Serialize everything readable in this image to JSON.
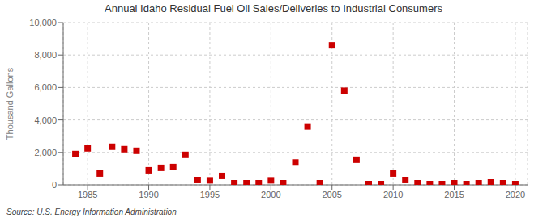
{
  "chart_data": {
    "type": "scatter",
    "title": "Annual Idaho Residual Fuel Oil Sales/Deliveries to Industrial Consumers",
    "y_label": "Thousand Gallons",
    "annotations": [
      "Source: U.S. Energy Information Administration"
    ],
    "x": [
      1984,
      1985,
      1986,
      1987,
      1988,
      1989,
      1990,
      1991,
      1992,
      1993,
      1994,
      1995,
      1996,
      1997,
      1998,
      1999,
      2000,
      2001,
      2002,
      2003,
      2004,
      2005,
      2006,
      2007,
      2008,
      2009,
      2010,
      2011,
      2012,
      2013,
      2014,
      2015,
      2016,
      2017,
      2018,
      2019,
      2020
    ],
    "values": [
      1900,
      2250,
      700,
      2350,
      2200,
      2100,
      900,
      1050,
      1100,
      1850,
      300,
      280,
      550,
      100,
      100,
      100,
      280,
      100,
      1380,
      3600,
      100,
      8600,
      5800,
      1550,
      50,
      50,
      700,
      300,
      100,
      50,
      50,
      100,
      50,
      100,
      150,
      100,
      50
    ],
    "color": "#cc0000",
    "marker": "square",
    "xlim": [
      1983,
      2021
    ],
    "xticks": [
      1985,
      1990,
      1995,
      2000,
      2005,
      2010,
      2015,
      2020
    ],
    "ylim": [
      0,
      10000
    ],
    "yticks": [
      0,
      {
        "value": 2000,
        "label": "2,000"
      },
      {
        "value": 4000,
        "label": "4,000"
      },
      {
        "value": 6000,
        "label": "6,000"
      },
      {
        "value": 8000,
        "label": "8,000"
      },
      {
        "value": 10000,
        "label": "10,000"
      }
    ],
    "grid": true
  }
}
